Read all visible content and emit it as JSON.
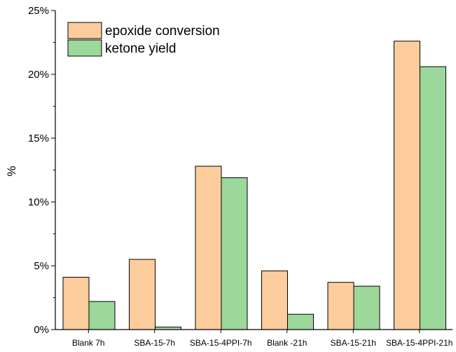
{
  "chart_data": {
    "type": "bar",
    "title": "",
    "xlabel": "",
    "ylabel": "%",
    "ylim": [
      0,
      25
    ],
    "yticks": [
      "0%",
      "5%",
      "10%",
      "15%",
      "20%",
      "25%"
    ],
    "grid": false,
    "legend_position": "top-left",
    "categories": [
      "Blank 7h",
      "SBA-15-7h",
      "SBA-15-4PPI-7h",
      "Blank -21h",
      "SBA-15-21h",
      "SBA-15-4PPI-21h"
    ],
    "series": [
      {
        "name": "epoxide conversion",
        "color": "#FDCC9C",
        "values": [
          4.1,
          5.5,
          12.8,
          4.6,
          3.7,
          22.6
        ]
      },
      {
        "name": "ketone yield",
        "color": "#9CD89C",
        "values": [
          2.2,
          0.2,
          11.9,
          1.2,
          3.4,
          20.6
        ]
      }
    ]
  }
}
